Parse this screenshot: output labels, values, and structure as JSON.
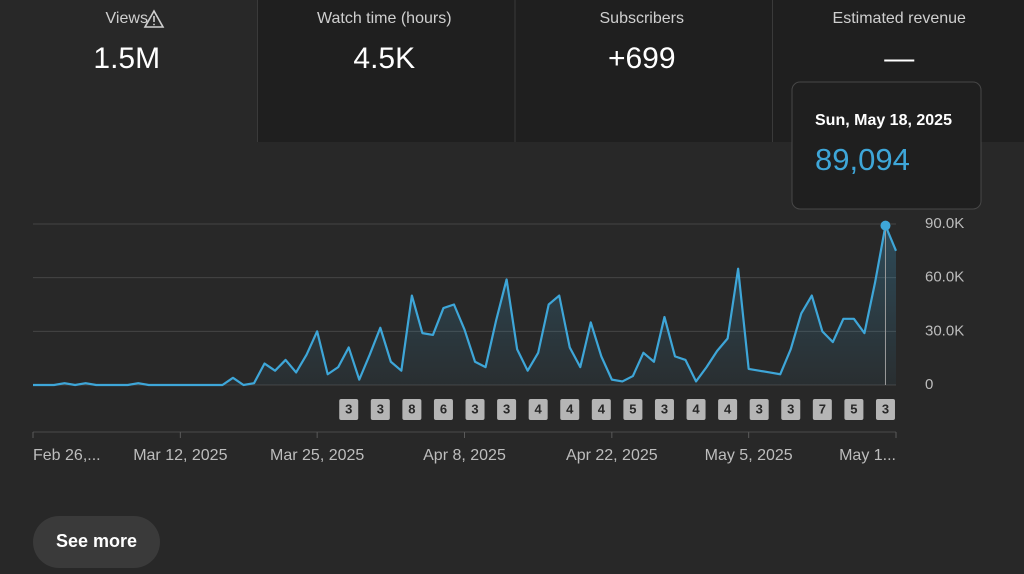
{
  "tabs": [
    {
      "label": "Views",
      "value": "1.5M"
    },
    {
      "label": "Watch time (hours)",
      "value": "4.5K"
    },
    {
      "label": "Subscribers",
      "value": "+699"
    },
    {
      "label": "Estimated revenue",
      "value": "—"
    }
  ],
  "tooltip": {
    "date": "Sun, May 18, 2025",
    "value": "89,094"
  },
  "video_markers": [
    "3",
    "3",
    "8",
    "6",
    "3",
    "3",
    "4",
    "4",
    "4",
    "5",
    "3",
    "4",
    "4",
    "3",
    "3",
    "7",
    "5",
    "3"
  ],
  "button": "See more",
  "chart_data": {
    "type": "line",
    "categories": [
      "Feb 26,...",
      null,
      null,
      null,
      null,
      null,
      null,
      null,
      null,
      null,
      null,
      null,
      null,
      null,
      "Mar 12, 2025",
      null,
      null,
      null,
      null,
      null,
      null,
      null,
      null,
      null,
      null,
      null,
      null,
      "Mar 25, 2025",
      null,
      null,
      null,
      null,
      null,
      null,
      null,
      null,
      null,
      null,
      null,
      null,
      null,
      "Apr 8, 2025",
      null,
      null,
      null,
      null,
      null,
      null,
      null,
      null,
      null,
      null,
      null,
      null,
      null,
      "Apr 22, 2025",
      null,
      null,
      null,
      null,
      null,
      null,
      null,
      null,
      null,
      null,
      null,
      null,
      "May 5, 2025",
      null,
      null,
      null,
      null,
      null,
      null,
      null,
      null,
      null,
      null,
      null,
      null,
      null,
      "May 1..."
    ],
    "series": [
      {
        "color": "#3ea6d8",
        "values": [
          0,
          0,
          0,
          1000,
          0,
          1000,
          0,
          0,
          0,
          0,
          1000,
          0,
          0,
          0,
          0,
          0,
          0,
          0,
          0,
          4000,
          0,
          1000,
          12000,
          8000,
          14000,
          7000,
          17000,
          30000,
          6000,
          10000,
          21000,
          3000,
          17000,
          32000,
          13000,
          8000,
          50000,
          29000,
          28000,
          43000,
          45000,
          31000,
          13000,
          10000,
          36000,
          59000,
          20000,
          8000,
          18000,
          45000,
          50000,
          21000,
          10000,
          35000,
          16000,
          3000,
          2000,
          5000,
          18000,
          13000,
          38000,
          16000,
          14000,
          2000,
          10000,
          19000,
          26000,
          65000,
          9000,
          8000,
          7000,
          6000,
          20000,
          40000,
          50000,
          30000,
          24000,
          37000,
          37000,
          29000,
          57000,
          89094,
          75000
        ]
      }
    ],
    "ylim": [
      0,
      90000
    ],
    "yticks": [
      0,
      {
        "value": 30000,
        "label": "30.0K"
      },
      {
        "value": 60000,
        "label": "60.0K"
      },
      {
        "value": 90000,
        "label": "90.0K"
      }
    ],
    "grid": true
  }
}
